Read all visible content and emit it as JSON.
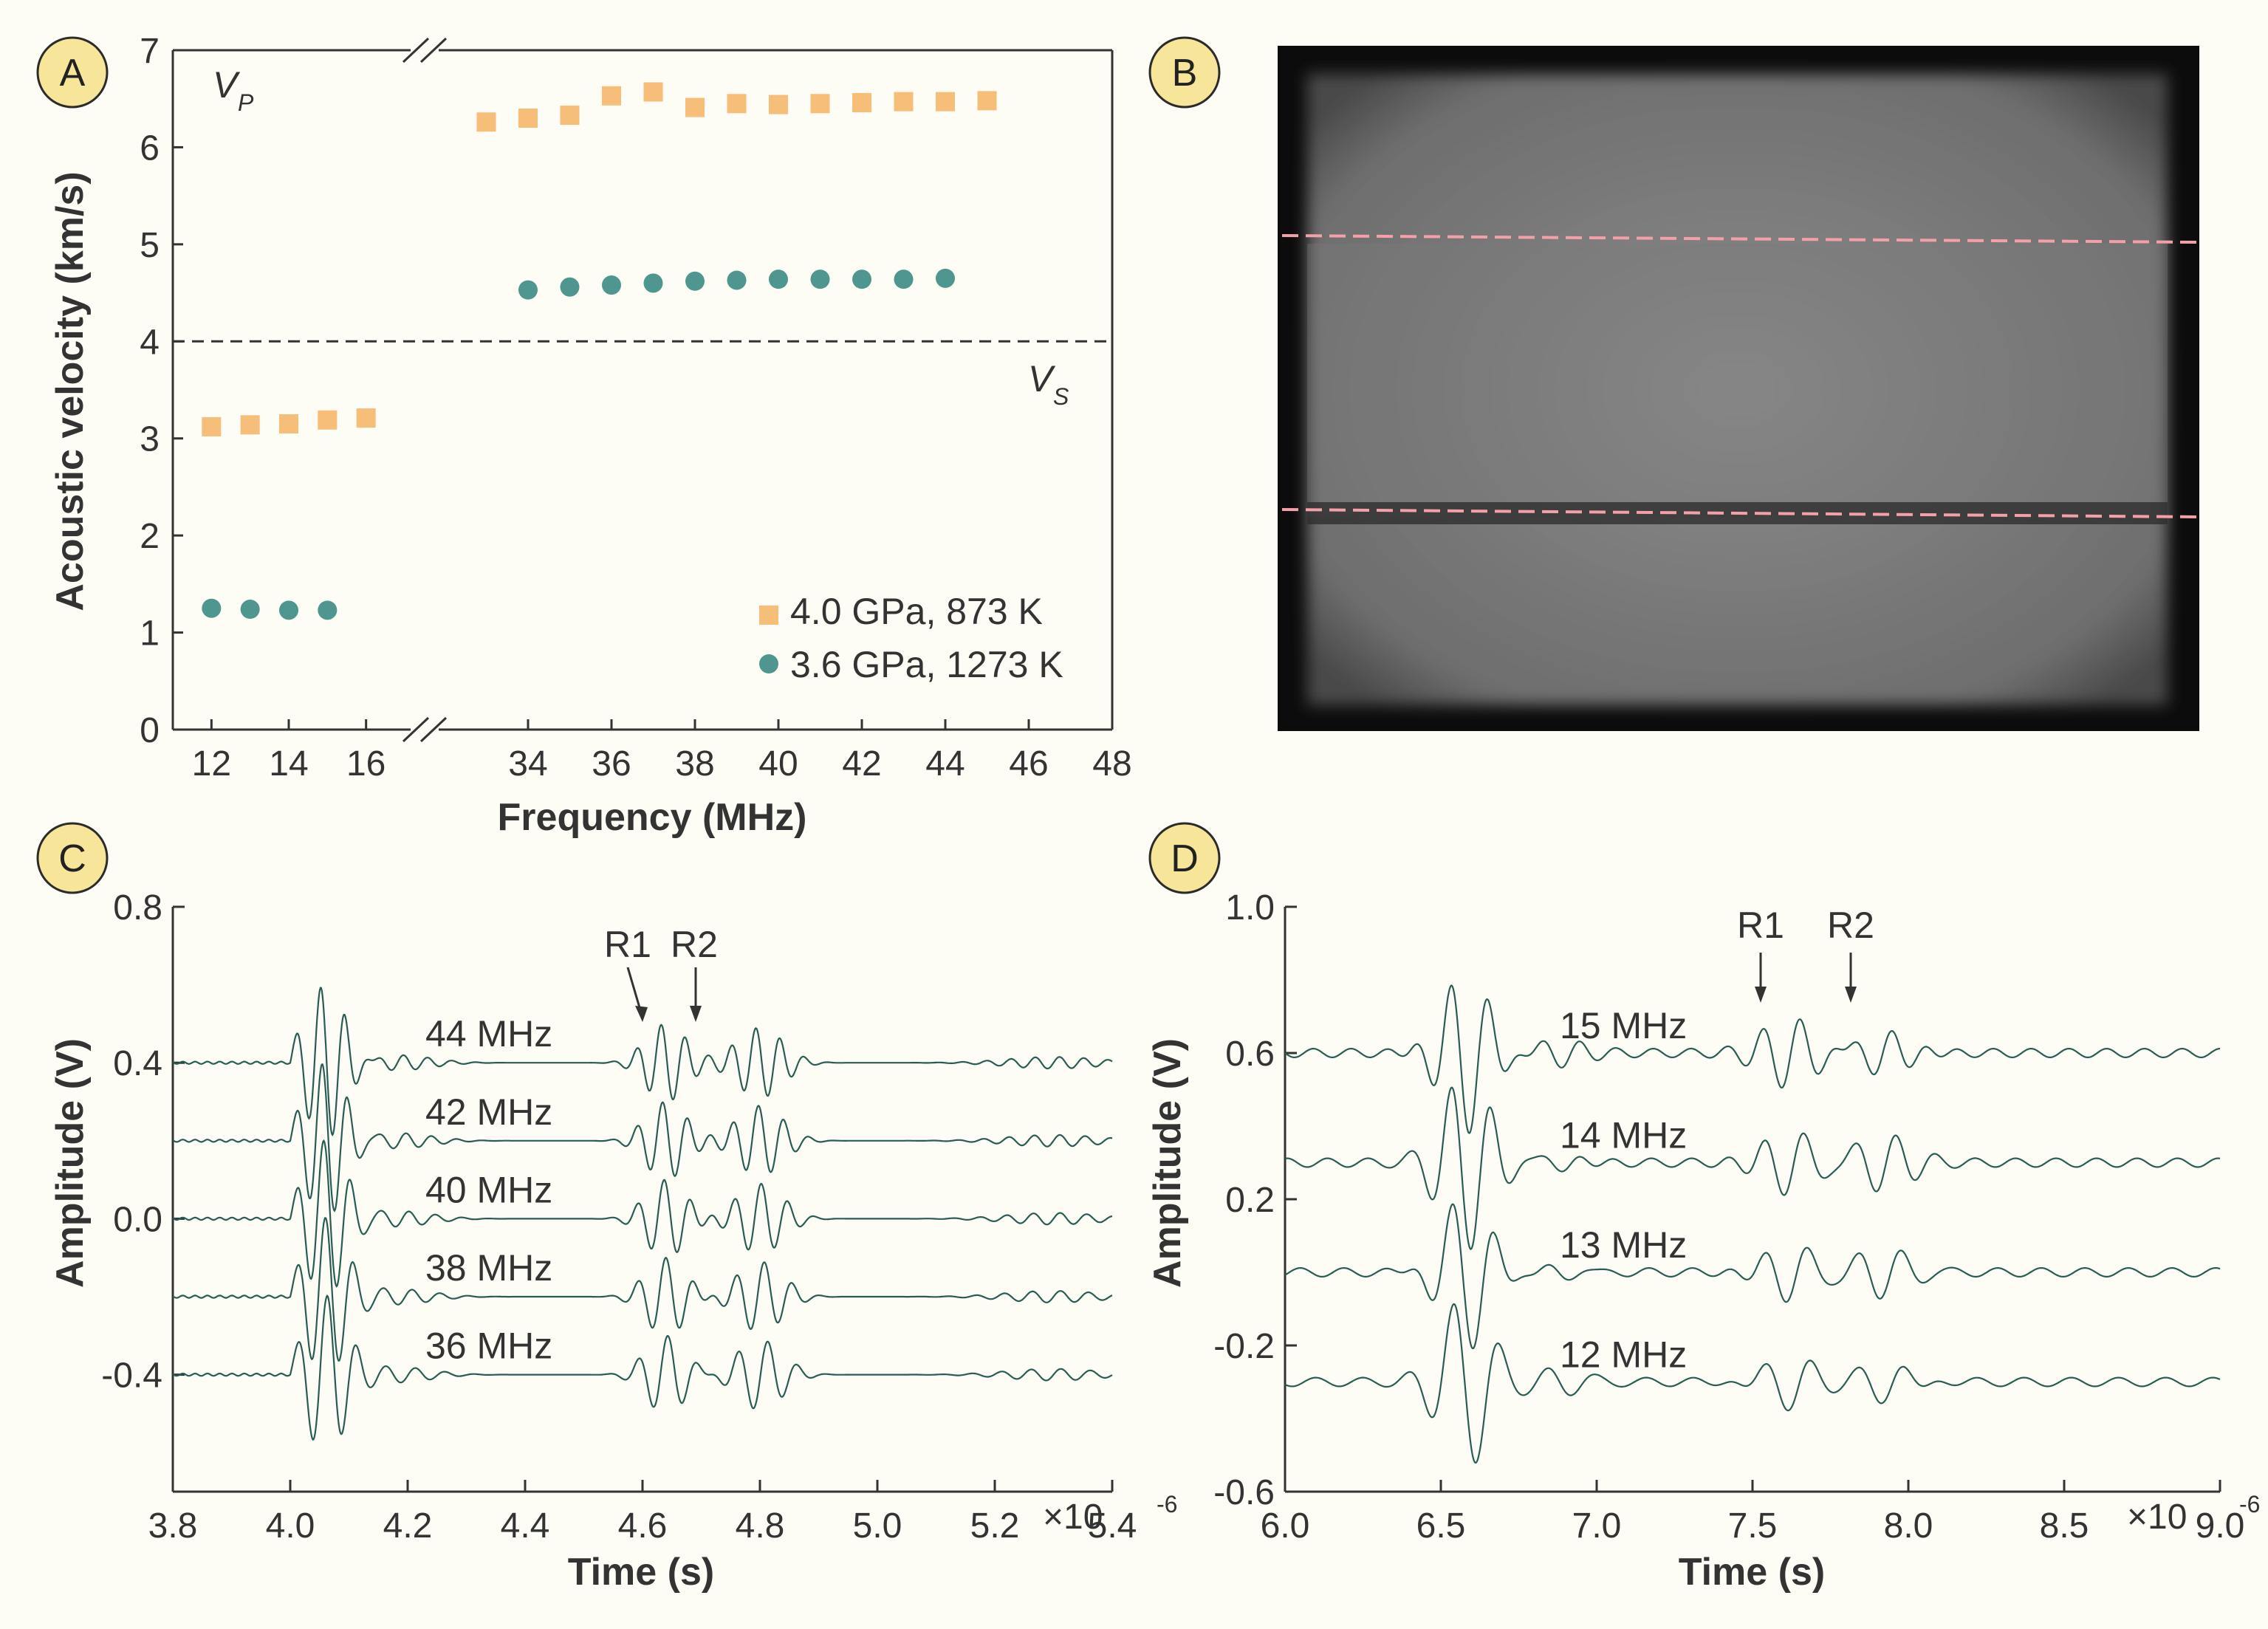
{
  "colors": {
    "orange": "#f7be7a",
    "teal": "#4f9690",
    "trace": "#2a5c56",
    "badge_fill": "#f7e59a",
    "badge_stroke": "#2b2b2b",
    "axis": "#333333",
    "text": "#333333",
    "dash": "#333333",
    "pink_dash": "#f4a0a8"
  },
  "panel_labels": [
    "A",
    "B",
    "C",
    "D"
  ],
  "chart_data": [
    {
      "panel": "A",
      "type": "scatter",
      "xlabel": "Frequency (MHz)",
      "ylabel": "Acoustic velocity (km/s)",
      "ylim": [
        0,
        7
      ],
      "yticks": [
        "0",
        "1",
        "2",
        "3",
        "4",
        "5",
        "6",
        "7"
      ],
      "x_axis_break": true,
      "x_segment_left": [
        11,
        17
      ],
      "x_segment_right": [
        32,
        48
      ],
      "xticks": [
        "12",
        "14",
        "16",
        "34",
        "36",
        "38",
        "40",
        "42",
        "44",
        "46",
        "48"
      ],
      "annotations": {
        "vp": "V",
        "vp_sub": "P",
        "vs": "V",
        "vs_sub": "S"
      },
      "reference_line_y": 4,
      "legend_position": "bottom-right",
      "series": [
        {
          "name": "4.0 GPa, 873 K",
          "marker": "square",
          "points": [
            [
              12,
              3.12
            ],
            [
              13,
              3.14
            ],
            [
              14,
              3.15
            ],
            [
              15,
              3.19
            ],
            [
              16,
              3.21
            ],
            [
              33,
              6.26
            ],
            [
              34,
              6.3
            ],
            [
              35,
              6.33
            ],
            [
              36,
              6.53
            ],
            [
              37,
              6.57
            ],
            [
              38,
              6.41
            ],
            [
              39,
              6.45
            ],
            [
              40,
              6.44
            ],
            [
              41,
              6.45
            ],
            [
              42,
              6.46
            ],
            [
              43,
              6.47
            ],
            [
              44,
              6.47
            ],
            [
              45,
              6.48
            ]
          ]
        },
        {
          "name": "3.6 GPa, 1273 K",
          "marker": "circle",
          "points": [
            [
              12,
              1.25
            ],
            [
              13,
              1.24
            ],
            [
              14,
              1.23
            ],
            [
              15,
              1.23
            ],
            [
              34,
              4.53
            ],
            [
              35,
              4.56
            ],
            [
              36,
              4.58
            ],
            [
              37,
              4.6
            ],
            [
              38,
              4.62
            ],
            [
              39,
              4.63
            ],
            [
              40,
              4.64
            ],
            [
              41,
              4.64
            ],
            [
              42,
              4.64
            ],
            [
              43,
              4.64
            ],
            [
              44,
              4.65
            ]
          ]
        }
      ]
    },
    {
      "panel": "C",
      "type": "line",
      "xlabel": "Time (s)",
      "ylabel": "Amplitude (V)",
      "xlim": [
        3.8,
        5.4
      ],
      "ylim": [
        -0.7,
        0.8
      ],
      "xticks": [
        "3.8",
        "4.0",
        "4.2",
        "4.4",
        "4.6",
        "4.8",
        "5.0",
        "5.2",
        "5.4"
      ],
      "x_multiplier": "×10",
      "x_multiplier_exp": "-6",
      "yticks": [
        "-0.4",
        "0.0",
        "0.4",
        "0.8"
      ],
      "arrow_labels": [
        "R1",
        "R2"
      ],
      "series": [
        {
          "name": "44 MHz",
          "offset": 0.4
        },
        {
          "name": "42 MHz",
          "offset": 0.2
        },
        {
          "name": "40 MHz",
          "offset": 0.0
        },
        {
          "name": "38 MHz",
          "offset": -0.2
        },
        {
          "name": "36 MHz",
          "offset": -0.4
        }
      ]
    },
    {
      "panel": "D",
      "type": "line",
      "xlabel": "Time (s)",
      "ylabel": "Amplitude (V)",
      "xlim": [
        6.0,
        9.0
      ],
      "ylim": [
        -0.6,
        1.0
      ],
      "xticks": [
        "6.0",
        "6.5",
        "7.0",
        "7.5",
        "8.0",
        "8.5",
        "9.0"
      ],
      "x_multiplier": "×10",
      "x_multiplier_exp": "-6",
      "yticks": [
        "-0.6",
        "-0.2",
        "0.2",
        "0.6",
        "1.0"
      ],
      "arrow_labels": [
        "R1",
        "R2"
      ],
      "series": [
        {
          "name": "15 MHz",
          "offset": 0.6
        },
        {
          "name": "14 MHz",
          "offset": 0.3
        },
        {
          "name": "13 MHz",
          "offset": 0.0
        },
        {
          "name": "12 MHz",
          "offset": -0.3
        }
      ]
    }
  ]
}
